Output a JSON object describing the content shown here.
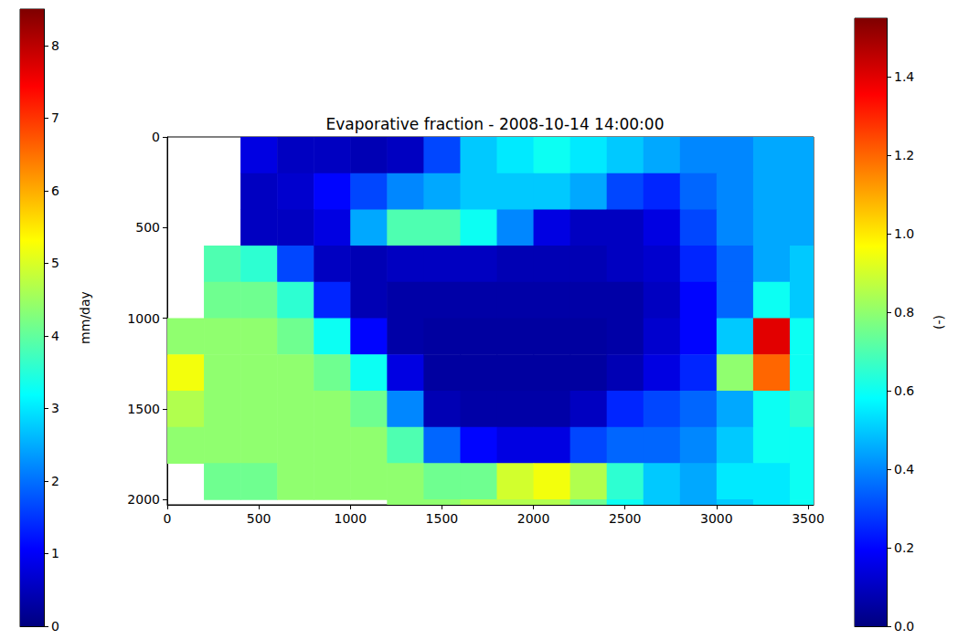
{
  "chart_data": {
    "type": "heatmap",
    "title": "Evaporative fraction - 2008-10-14 14:00:00",
    "x_edges": [
      0,
      200,
      400,
      600,
      800,
      1000,
      1200,
      1400,
      1600,
      1800,
      2000,
      2200,
      2400,
      2600,
      2800,
      3000,
      3200,
      3400,
      3600
    ],
    "y_edges": [
      0,
      200,
      400,
      600,
      800,
      1000,
      1200,
      1400,
      1600,
      1800,
      2000,
      2200
    ],
    "cells": [
      [
        null,
        null,
        0.15,
        0.1,
        0.1,
        0.08,
        0.1,
        0.3,
        0.5,
        0.55,
        0.6,
        0.55,
        0.5,
        0.45,
        0.4,
        0.4,
        0.45,
        0.45
      ],
      [
        null,
        null,
        0.1,
        0.12,
        0.2,
        0.3,
        0.4,
        0.45,
        0.5,
        0.5,
        0.5,
        0.45,
        0.3,
        0.25,
        0.35,
        0.4,
        0.45,
        0.45
      ],
      [
        null,
        null,
        0.1,
        0.1,
        0.15,
        0.45,
        0.7,
        0.7,
        0.6,
        0.4,
        0.15,
        0.1,
        0.1,
        0.15,
        0.3,
        0.4,
        0.45,
        0.45
      ],
      [
        null,
        0.7,
        0.65,
        0.3,
        0.1,
        0.08,
        0.1,
        0.1,
        0.1,
        0.08,
        0.08,
        0.08,
        0.1,
        0.12,
        0.25,
        0.35,
        0.45,
        0.5
      ],
      [
        null,
        0.75,
        0.75,
        0.65,
        0.25,
        0.08,
        0.06,
        0.06,
        0.06,
        0.06,
        0.06,
        0.06,
        0.06,
        0.1,
        0.2,
        0.35,
        0.6,
        0.5
      ],
      [
        0.8,
        0.8,
        0.8,
        0.75,
        0.6,
        0.2,
        0.06,
        0.05,
        0.05,
        0.05,
        0.05,
        0.05,
        0.06,
        0.12,
        0.2,
        0.5,
        1.4,
        0.6
      ],
      [
        0.95,
        0.8,
        0.8,
        0.8,
        0.75,
        0.6,
        0.15,
        0.05,
        0.05,
        0.05,
        0.05,
        0.05,
        0.08,
        0.15,
        0.25,
        0.8,
        1.2,
        0.6
      ],
      [
        0.85,
        0.8,
        0.8,
        0.8,
        0.8,
        0.75,
        0.4,
        0.08,
        0.06,
        0.06,
        0.06,
        0.1,
        0.25,
        0.3,
        0.35,
        0.45,
        0.6,
        0.65
      ],
      [
        0.8,
        0.8,
        0.8,
        0.8,
        0.8,
        0.8,
        0.7,
        0.35,
        0.2,
        0.15,
        0.15,
        0.3,
        0.35,
        0.35,
        0.4,
        0.5,
        0.6,
        0.6
      ],
      [
        null,
        0.75,
        0.75,
        0.8,
        0.8,
        0.8,
        0.8,
        0.75,
        0.75,
        0.9,
        0.95,
        0.85,
        0.65,
        0.5,
        0.45,
        0.55,
        0.55,
        0.6
      ],
      [
        null,
        null,
        null,
        null,
        null,
        null,
        0.8,
        0.8,
        0.85,
        0.85,
        0.85,
        0.75,
        0.6,
        0.5,
        0.45,
        0.5,
        0.55,
        0.6
      ]
    ],
    "xlim": [
      0,
      3530
    ],
    "xticks": [
      0,
      500,
      1000,
      1500,
      2000,
      2500,
      3000,
      3500
    ],
    "ylim": [
      2030,
      0
    ],
    "yticks": [
      0,
      500,
      1000,
      1500,
      2000
    ],
    "colorbar": {
      "label": "(-)",
      "lim": [
        0,
        1.55
      ],
      "ticks": [
        {
          "value": 0,
          "label": "0.0"
        },
        0.2,
        0.4,
        0.6,
        0.8,
        {
          "value": 1,
          "label": "1.0"
        },
        1.2,
        1.4
      ]
    },
    "colorbar2": {
      "label": "mm/day",
      "lim": [
        0,
        8.5
      ],
      "ticks": [
        0,
        1,
        2,
        3,
        4,
        5,
        6,
        7,
        8
      ]
    }
  }
}
